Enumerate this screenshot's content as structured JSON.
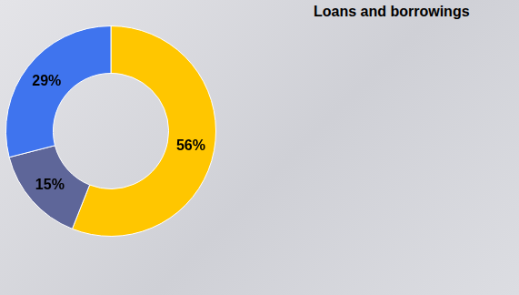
{
  "chart_data": {
    "type": "doughnut",
    "title": "Loans and borrowings",
    "values": [
      56,
      15,
      29
    ],
    "value_labels": [
      "56%",
      "15%",
      "29%"
    ],
    "colors": [
      "#ffc600",
      "#5e6699",
      "#3f74ee"
    ],
    "data_labels": true
  }
}
